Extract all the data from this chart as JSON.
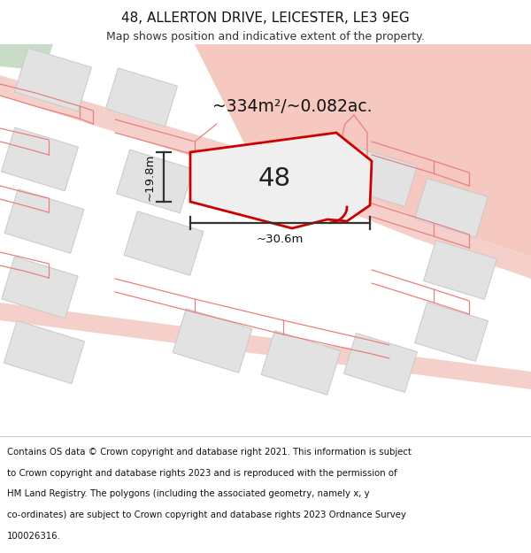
{
  "title_line1": "48, ALLERTON DRIVE, LEICESTER, LE3 9EG",
  "title_line2": "Map shows position and indicative extent of the property.",
  "area_label": "~334m²/~0.082ac.",
  "width_label": "~30.6m",
  "height_label": "~19.8m",
  "property_number": "48",
  "map_bg": "#f2f0f0",
  "road_color": "#f5cec8",
  "road_color2": "#f9d8d4",
  "green_patch": "#d4e8d4",
  "building_fill": "#e2e2e2",
  "building_edge": "#c8c8c8",
  "boundary_color": "#e88080",
  "property_fill": "#f0eeee",
  "property_edge": "#cc0000",
  "dim_color": "#333333",
  "title_fontsize": 11,
  "subtitle_fontsize": 9,
  "footer_fontsize": 7.3,
  "footer_lines": [
    "Contains OS data © Crown copyright and database right 2021. This information is subject",
    "to Crown copyright and database rights 2023 and is reproduced with the permission of",
    "HM Land Registry. The polygons (including the associated geometry, namely x, y",
    "co-ordinates) are subject to Crown copyright and database rights 2023 Ordnance Survey",
    "100026316."
  ]
}
